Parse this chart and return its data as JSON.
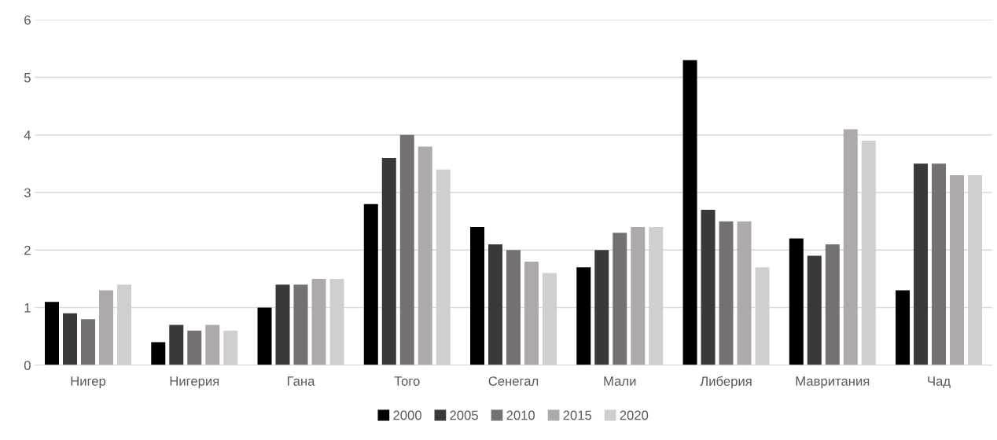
{
  "chart_data": {
    "type": "bar",
    "categories": [
      "Нигер",
      "Нигерия",
      "Гана",
      "Того",
      "Сенегал",
      "Мали",
      "Либерия",
      "Мавритания",
      "Чад"
    ],
    "series": [
      {
        "name": "2000",
        "color": "#000000",
        "values": [
          1.1,
          0.4,
          1.0,
          2.8,
          2.4,
          1.7,
          5.3,
          2.2,
          1.3
        ]
      },
      {
        "name": "2005",
        "color": "#3b3838",
        "values": [
          0.9,
          0.7,
          1.4,
          3.6,
          2.1,
          2.0,
          2.7,
          1.9,
          3.5
        ]
      },
      {
        "name": "2010",
        "color": "#767171",
        "values": [
          0.8,
          0.6,
          1.4,
          4.0,
          2.0,
          2.3,
          2.5,
          2.1,
          3.5
        ]
      },
      {
        "name": "2015",
        "color": "#aeaaaa",
        "values": [
          1.3,
          0.7,
          1.5,
          3.8,
          1.8,
          2.4,
          2.5,
          4.1,
          3.3
        ]
      },
      {
        "name": "2020",
        "color": "#d0cece",
        "values": [
          1.4,
          0.6,
          1.5,
          3.4,
          1.6,
          2.4,
          1.7,
          3.9,
          3.3
        ]
      }
    ],
    "ylim": [
      0,
      6
    ],
    "yticks": [
      0,
      1,
      2,
      3,
      4,
      5,
      6
    ],
    "grid": "y",
    "legend": "bottom"
  }
}
